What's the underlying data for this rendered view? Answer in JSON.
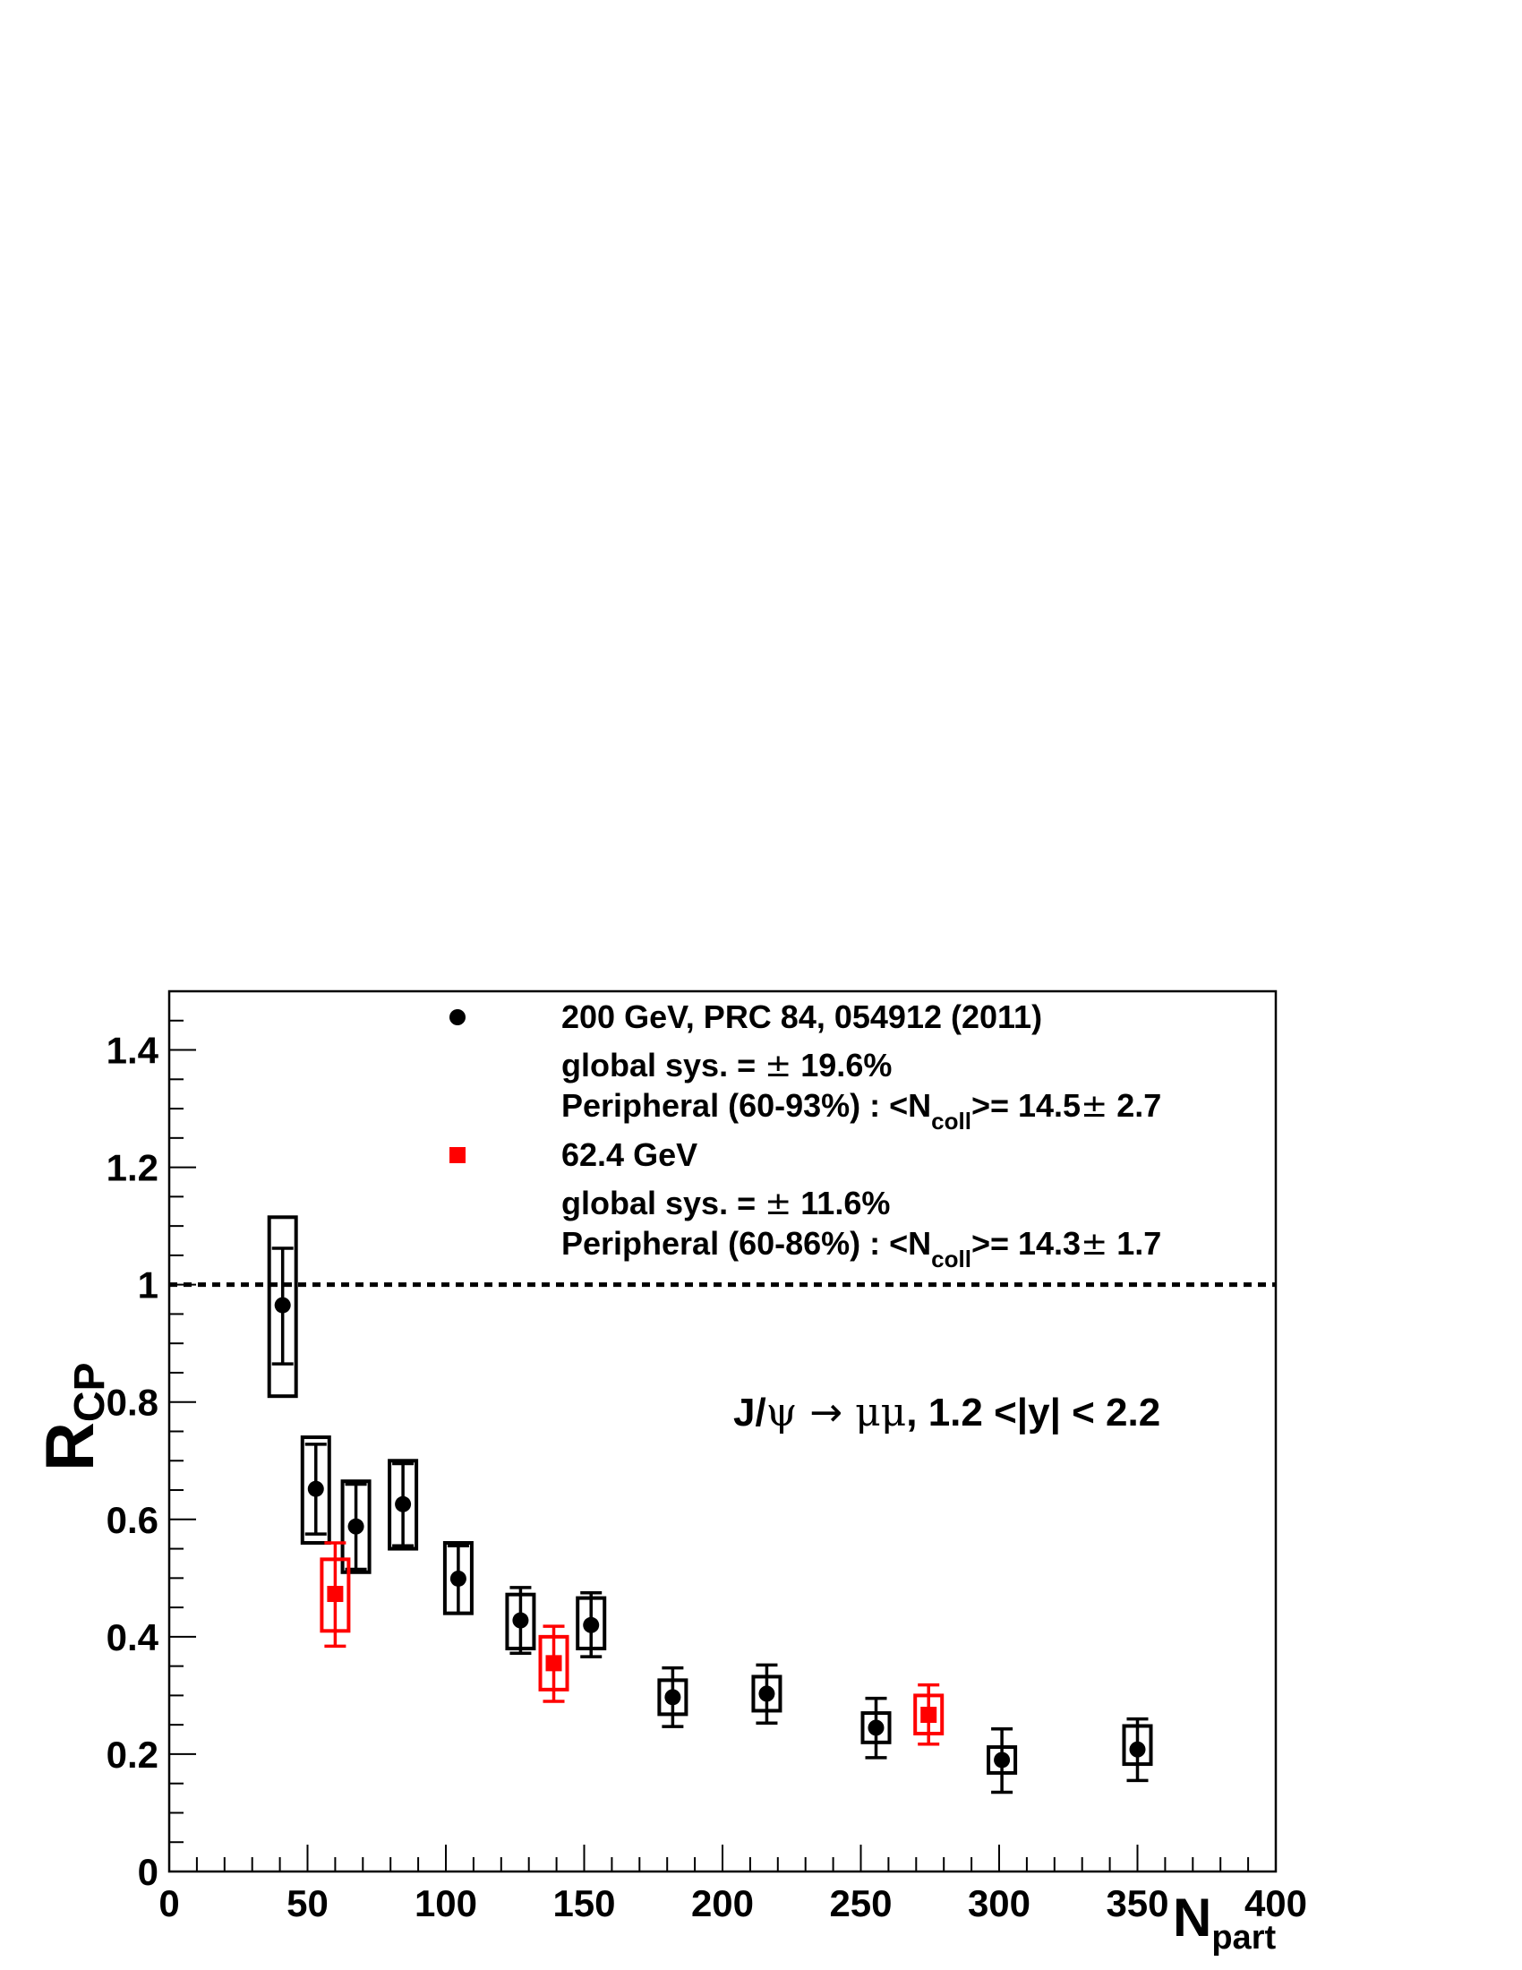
{
  "chart_data": {
    "type": "scatter",
    "xlabel": {
      "main": "N",
      "sub": "part"
    },
    "ylabel": {
      "main": "R",
      "sub": "CP"
    },
    "xlim": [
      0,
      400
    ],
    "ylim": [
      0,
      1.5
    ],
    "xticks": [
      0,
      50,
      100,
      150,
      200,
      250,
      300,
      350,
      400
    ],
    "yticks": [
      0,
      0.2,
      0.4,
      0.6,
      0.8,
      1,
      1.2,
      1.4
    ],
    "x_tick_labels": [
      "0",
      "50",
      "100",
      "150",
      "200",
      "250",
      "300",
      "350",
      "400"
    ],
    "y_tick_labels": [
      "0",
      "0.2",
      "0.4",
      "0.6",
      "0.8",
      "1",
      "1.2",
      "1.4"
    ],
    "reference_line": {
      "y": 1,
      "style": "dotted"
    },
    "annotation": {
      "text_parts": [
        "J/",
        "ψ",
        " → ",
        "μμ",
        ", 1.2 <|y| < 2.2"
      ]
    },
    "series": [
      {
        "name": "200 GeV, PRC 84, 054912 (2011)",
        "marker": "circle",
        "color": "#000000",
        "global_sys": [
          "global sys. = ",
          "±",
          " 19.6%"
        ],
        "peripheral": [
          "Peripheral (60-93%) : <N",
          "coll",
          ">= 14.5",
          "±",
          " 2.7"
        ],
        "points": [
          {
            "x": 41.0,
            "y": 0.965,
            "stat_lo": 0.865,
            "stat_hi": 1.062,
            "sys_lo": 0.81,
            "sys_hi": 1.115
          },
          {
            "x": 53.0,
            "y": 0.652,
            "stat_lo": 0.575,
            "stat_hi": 0.728,
            "sys_lo": 0.56,
            "sys_hi": 0.74
          },
          {
            "x": 67.5,
            "y": 0.588,
            "stat_lo": 0.515,
            "stat_hi": 0.66,
            "sys_lo": 0.51,
            "sys_hi": 0.665
          },
          {
            "x": 84.5,
            "y": 0.626,
            "stat_lo": 0.555,
            "stat_hi": 0.695,
            "sys_lo": 0.55,
            "sys_hi": 0.7
          },
          {
            "x": 104.5,
            "y": 0.499,
            "stat_lo": 0.44,
            "stat_hi": 0.555,
            "sys_lo": 0.44,
            "sys_hi": 0.56
          },
          {
            "x": 127.0,
            "y": 0.428,
            "stat_lo": 0.372,
            "stat_hi": 0.484,
            "sys_lo": 0.38,
            "sys_hi": 0.472
          },
          {
            "x": 152.5,
            "y": 0.42,
            "stat_lo": 0.366,
            "stat_hi": 0.475,
            "sys_lo": 0.38,
            "sys_hi": 0.466
          },
          {
            "x": 182.0,
            "y": 0.297,
            "stat_lo": 0.247,
            "stat_hi": 0.347,
            "sys_lo": 0.268,
            "sys_hi": 0.326
          },
          {
            "x": 216.0,
            "y": 0.303,
            "stat_lo": 0.253,
            "stat_hi": 0.352,
            "sys_lo": 0.274,
            "sys_hi": 0.332
          },
          {
            "x": 255.5,
            "y": 0.245,
            "stat_lo": 0.194,
            "stat_hi": 0.295,
            "sys_lo": 0.22,
            "sys_hi": 0.27
          },
          {
            "x": 301.0,
            "y": 0.19,
            "stat_lo": 0.135,
            "stat_hi": 0.243,
            "sys_lo": 0.168,
            "sys_hi": 0.212
          },
          {
            "x": 350.0,
            "y": 0.208,
            "stat_lo": 0.155,
            "stat_hi": 0.26,
            "sys_lo": 0.183,
            "sys_hi": 0.248
          }
        ]
      },
      {
        "name": "62.4 GeV",
        "marker": "square",
        "color": "#ff0000",
        "global_sys": [
          "global sys. = ",
          "±",
          " 11.6%"
        ],
        "peripheral": [
          "Peripheral (60-86%) : <N",
          "coll",
          ">= 14.3",
          "±",
          " 1.7"
        ],
        "points": [
          {
            "x": 60.0,
            "y": 0.473,
            "stat_lo": 0.384,
            "stat_hi": 0.56,
            "sys_lo": 0.41,
            "sys_hi": 0.532
          },
          {
            "x": 139.0,
            "y": 0.355,
            "stat_lo": 0.29,
            "stat_hi": 0.418,
            "sys_lo": 0.31,
            "sys_hi": 0.4
          },
          {
            "x": 274.5,
            "y": 0.267,
            "stat_lo": 0.217,
            "stat_hi": 0.318,
            "sys_lo": 0.235,
            "sys_hi": 0.3
          }
        ]
      }
    ]
  }
}
